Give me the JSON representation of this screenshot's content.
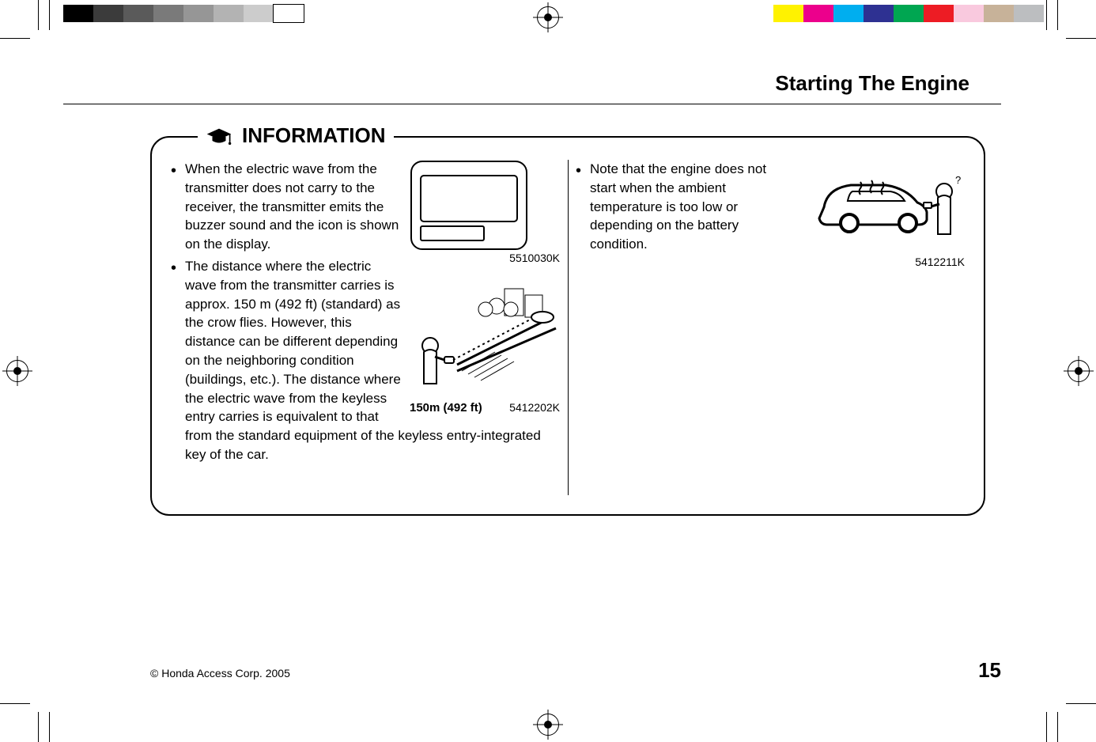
{
  "page": {
    "title": "Starting The Engine",
    "copyright": "© Honda Access Corp. 2005",
    "page_number": "15"
  },
  "info": {
    "heading": "INFORMATION",
    "left_bullets": [
      "When the electric wave from the transmitter does not carry to the receiver, the transmitter emits the buzzer sound and the icon is shown on the display.",
      "The distance where the electric wave from the transmitter carries is approx. 150 m (492 ft) (standard) as the crow flies.  However, this distance can be different depending on the neighboring condition (buildings, etc.).  The distance where the electric wave from the keyless entry carries is equivalent to that from the standard equipment of the keyless entry-integrated key of the car."
    ],
    "right_bullets": [
      "Note that the engine does not start when the ambient temperature is too low or depending on the battery condition."
    ],
    "fig1_code": "5510030K",
    "fig2_code": "5412202K",
    "fig2_caption": "150m (492 ft)",
    "fig3_code": "5412211K"
  },
  "color_bar": {
    "left_colors": [
      "#000000",
      "#3b3b3b",
      "#5a5a5a",
      "#7a7a7a",
      "#969696",
      "#b3b3b3",
      "#cccccc",
      "#ffffff"
    ],
    "right_colors": [
      "#fff200",
      "#ec008c",
      "#00aeef",
      "#2e3192",
      "#00a651",
      "#ed1c24",
      "#f9c9de",
      "#c7b299",
      "#bcbec0"
    ],
    "swatch_w": 38,
    "border_last_left": true
  }
}
